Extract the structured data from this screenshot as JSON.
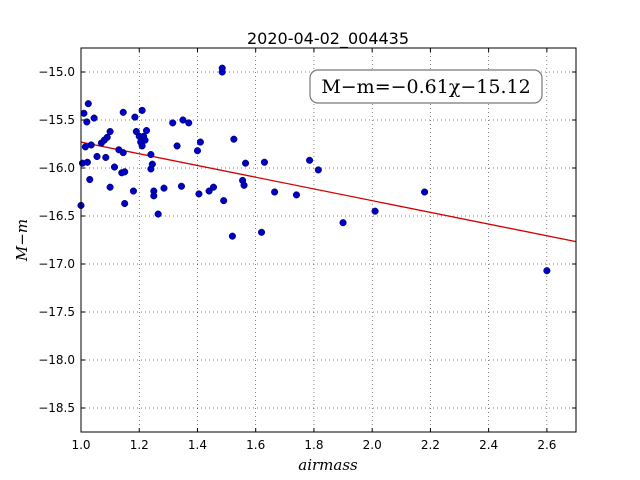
{
  "chart_data": {
    "type": "scatter",
    "title": "2020-04-02_004435",
    "xlabel": "airmass",
    "ylabel": "M−m",
    "xlim": [
      1.0,
      2.7
    ],
    "ylim": [
      -18.75,
      -14.75
    ],
    "y_inverted": true,
    "grid": true,
    "xticks": [
      1.0,
      1.2,
      1.4,
      1.6,
      1.8,
      2.0,
      2.2,
      2.4,
      2.6
    ],
    "yticks": [
      -15.0,
      -15.5,
      -16.0,
      -16.5,
      -17.0,
      -17.5,
      -18.0,
      -18.5
    ],
    "annotation": "M−m=−0.61χ−15.12",
    "annotation_position": "top-right",
    "fit_line": {
      "slope": -0.61,
      "intercept": -15.12,
      "color": "#d40000"
    },
    "point_color": "#0000c0",
    "points": [
      {
        "x": 1.0,
        "y": -16.39
      },
      {
        "x": 1.005,
        "y": -15.95
      },
      {
        "x": 1.01,
        "y": -15.43
      },
      {
        "x": 1.015,
        "y": -15.78
      },
      {
        "x": 1.02,
        "y": -15.52
      },
      {
        "x": 1.022,
        "y": -15.94
      },
      {
        "x": 1.025,
        "y": -15.33
      },
      {
        "x": 1.03,
        "y": -16.12
      },
      {
        "x": 1.035,
        "y": -15.76
      },
      {
        "x": 1.045,
        "y": -15.48
      },
      {
        "x": 1.055,
        "y": -15.88
      },
      {
        "x": 1.07,
        "y": -15.74
      },
      {
        "x": 1.08,
        "y": -15.71
      },
      {
        "x": 1.085,
        "y": -15.89
      },
      {
        "x": 1.09,
        "y": -15.68
      },
      {
        "x": 1.1,
        "y": -15.62
      },
      {
        "x": 1.1,
        "y": -16.2
      },
      {
        "x": 1.115,
        "y": -15.99
      },
      {
        "x": 1.13,
        "y": -15.81
      },
      {
        "x": 1.14,
        "y": -16.05
      },
      {
        "x": 1.145,
        "y": -15.84
      },
      {
        "x": 1.145,
        "y": -15.42
      },
      {
        "x": 1.15,
        "y": -16.04
      },
      {
        "x": 1.15,
        "y": -16.37
      },
      {
        "x": 1.18,
        "y": -16.24
      },
      {
        "x": 1.185,
        "y": -15.47
      },
      {
        "x": 1.19,
        "y": -15.62
      },
      {
        "x": 1.2,
        "y": -15.67
      },
      {
        "x": 1.205,
        "y": -15.73
      },
      {
        "x": 1.21,
        "y": -15.77
      },
      {
        "x": 1.21,
        "y": -15.4
      },
      {
        "x": 1.215,
        "y": -15.67
      },
      {
        "x": 1.22,
        "y": -15.71
      },
      {
        "x": 1.225,
        "y": -15.61
      },
      {
        "x": 1.24,
        "y": -15.86
      },
      {
        "x": 1.245,
        "y": -15.96
      },
      {
        "x": 1.24,
        "y": -16.01
      },
      {
        "x": 1.25,
        "y": -16.24
      },
      {
        "x": 1.25,
        "y": -16.29
      },
      {
        "x": 1.265,
        "y": -16.48
      },
      {
        "x": 1.285,
        "y": -16.21
      },
      {
        "x": 1.315,
        "y": -15.53
      },
      {
        "x": 1.33,
        "y": -15.77
      },
      {
        "x": 1.345,
        "y": -16.19
      },
      {
        "x": 1.35,
        "y": -15.5
      },
      {
        "x": 1.37,
        "y": -15.53
      },
      {
        "x": 1.4,
        "y": -15.82
      },
      {
        "x": 1.405,
        "y": -16.27
      },
      {
        "x": 1.41,
        "y": -15.73
      },
      {
        "x": 1.44,
        "y": -16.24
      },
      {
        "x": 1.455,
        "y": -16.2
      },
      {
        "x": 1.485,
        "y": -15.0
      },
      {
        "x": 1.485,
        "y": -14.96
      },
      {
        "x": 1.49,
        "y": -16.34
      },
      {
        "x": 1.52,
        "y": -16.71
      },
      {
        "x": 1.525,
        "y": -15.7
      },
      {
        "x": 1.555,
        "y": -16.13
      },
      {
        "x": 1.56,
        "y": -16.18
      },
      {
        "x": 1.565,
        "y": -15.95
      },
      {
        "x": 1.62,
        "y": -16.67
      },
      {
        "x": 1.63,
        "y": -15.94
      },
      {
        "x": 1.665,
        "y": -16.25
      },
      {
        "x": 1.74,
        "y": -16.28
      },
      {
        "x": 1.785,
        "y": -15.92
      },
      {
        "x": 1.815,
        "y": -16.02
      },
      {
        "x": 1.9,
        "y": -16.57
      },
      {
        "x": 2.01,
        "y": -16.45
      },
      {
        "x": 2.18,
        "y": -16.25
      },
      {
        "x": 2.6,
        "y": -17.07
      }
    ]
  }
}
